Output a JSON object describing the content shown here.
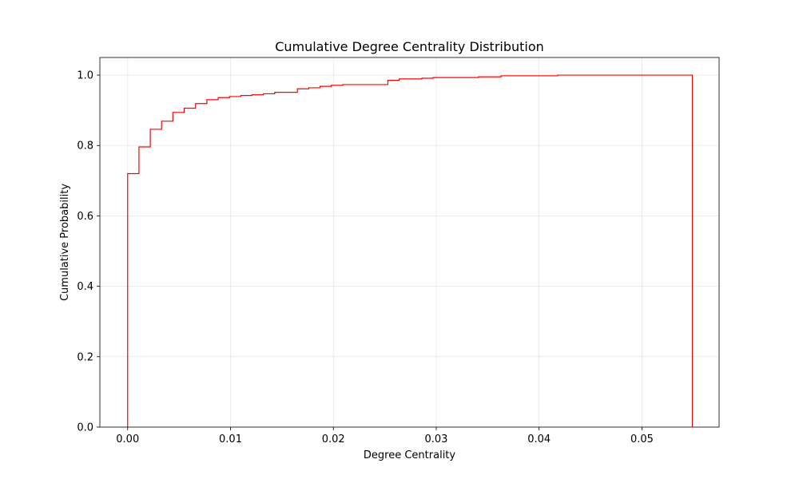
{
  "chart_data": {
    "type": "line",
    "title": "Cumulative Degree Centrality Distribution",
    "xlabel": "Degree Centrality",
    "ylabel": "Cumulative Probability",
    "xlim": [
      -0.0027,
      0.0575
    ],
    "ylim": [
      0,
      1.05
    ],
    "x_ticks": [
      0.0,
      0.01,
      0.02,
      0.03,
      0.04,
      0.05
    ],
    "x_tick_labels": [
      "0.00",
      "0.01",
      "0.02",
      "0.03",
      "0.04",
      "0.05"
    ],
    "y_ticks": [
      0.0,
      0.2,
      0.4,
      0.6,
      0.8,
      1.0
    ],
    "y_tick_labels": [
      "0.0",
      "0.2",
      "0.4",
      "0.6",
      "0.8",
      "1.0"
    ],
    "grid": true,
    "step": "post",
    "series": [
      {
        "color": "#ff0000",
        "x": [
          0.0,
          0.0,
          0.0011,
          0.0022,
          0.0033,
          0.0044,
          0.0055,
          0.0066,
          0.0077,
          0.0088,
          0.0099,
          0.011,
          0.0121,
          0.0132,
          0.0143,
          0.0165,
          0.0176,
          0.0187,
          0.0198,
          0.0209,
          0.0253,
          0.0264,
          0.0286,
          0.0297,
          0.0341,
          0.0363,
          0.0418,
          0.0549,
          0.0549
        ],
        "y": [
          0.0,
          0.72,
          0.796,
          0.846,
          0.869,
          0.894,
          0.906,
          0.919,
          0.93,
          0.936,
          0.939,
          0.942,
          0.944,
          0.947,
          0.951,
          0.961,
          0.964,
          0.968,
          0.971,
          0.973,
          0.985,
          0.989,
          0.991,
          0.993,
          0.995,
          0.998,
          1.0,
          1.0,
          0.0
        ]
      }
    ]
  }
}
